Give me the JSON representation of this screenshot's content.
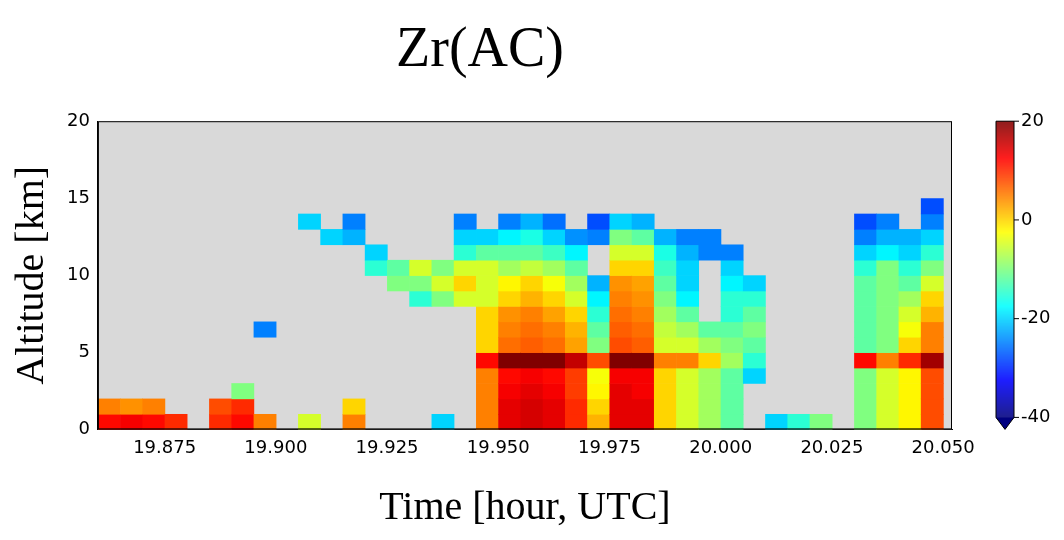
{
  "chart_data": {
    "type": "heatmap",
    "title": "Zr(AC)",
    "x_label": "Time [hour, UTC]",
    "y_label": "Altitude [km]",
    "xlim": [
      19.86,
      20.052
    ],
    "xticks": [
      19.875,
      {
        "value": 19.9,
        "label": "19.900"
      },
      19.925,
      {
        "value": 19.95,
        "label": "19.950"
      },
      19.975,
      {
        "value": 20.0,
        "label": "20.000"
      },
      20.025,
      {
        "value": 20.05,
        "label": "20.050"
      }
    ],
    "ylim": [
      0,
      20
    ],
    "yticks": [
      0,
      5,
      10,
      15,
      20
    ],
    "grid": false,
    "x": [
      19.8625,
      19.8675,
      19.8725,
      19.8775,
      19.8825,
      19.8875,
      19.8925,
      19.8975,
      19.9025,
      19.9075,
      19.9125,
      19.9175,
      19.9225,
      19.9275,
      19.9325,
      19.9375,
      19.9425,
      19.9475,
      19.9525,
      19.9575,
      19.9625,
      19.9675,
      19.9725,
      19.9775,
      19.9825,
      19.9875,
      19.9925,
      19.9975,
      20.0025,
      20.0075,
      20.0125,
      20.0175,
      20.0225,
      20.0275,
      20.0325,
      20.0375,
      20.0425,
      20.0475
    ],
    "y": [
      0.5,
      1.5,
      2.5,
      3.5,
      4.5,
      5.5,
      6.5,
      7.5,
      8.5,
      9.5,
      10.5,
      11.5,
      12.5,
      13.5,
      14.5
    ],
    "z": [
      [
        12,
        5,
        null,
        null,
        null,
        null,
        null,
        null,
        null,
        null,
        null,
        null,
        null,
        null,
        null
      ],
      [
        13,
        4,
        null,
        null,
        null,
        null,
        null,
        null,
        null,
        null,
        null,
        null,
        null,
        null,
        null
      ],
      [
        12,
        5,
        null,
        null,
        null,
        null,
        null,
        null,
        null,
        null,
        null,
        null,
        null,
        null,
        null
      ],
      [
        10,
        null,
        null,
        null,
        null,
        null,
        null,
        null,
        null,
        null,
        null,
        null,
        null,
        null,
        null
      ],
      [
        null,
        null,
        null,
        null,
        null,
        null,
        null,
        null,
        null,
        null,
        null,
        null,
        null,
        null,
        null
      ],
      [
        10,
        8,
        null,
        null,
        null,
        null,
        null,
        null,
        null,
        null,
        null,
        null,
        null,
        null,
        null
      ],
      [
        12,
        10,
        -10,
        null,
        null,
        null,
        null,
        null,
        null,
        null,
        null,
        null,
        null,
        null,
        null
      ],
      [
        5,
        null,
        null,
        null,
        null,
        null,
        -25,
        null,
        null,
        null,
        null,
        null,
        null,
        null,
        null
      ],
      [
        null,
        null,
        null,
        null,
        null,
        null,
        null,
        null,
        null,
        null,
        null,
        null,
        null,
        null,
        null
      ],
      [
        -5,
        null,
        null,
        null,
        null,
        null,
        null,
        null,
        null,
        null,
        null,
        null,
        null,
        -20,
        null
      ],
      [
        null,
        null,
        null,
        null,
        null,
        null,
        null,
        null,
        null,
        null,
        null,
        null,
        -20,
        null,
        null
      ],
      [
        5,
        0,
        null,
        null,
        null,
        null,
        null,
        null,
        null,
        null,
        null,
        null,
        -22,
        -25,
        null
      ],
      [
        null,
        null,
        null,
        null,
        null,
        null,
        null,
        null,
        null,
        null,
        -15,
        -20,
        null,
        null,
        null
      ],
      [
        null,
        null,
        null,
        null,
        null,
        null,
        null,
        null,
        null,
        -10,
        -12,
        null,
        null,
        null,
        null
      ],
      [
        null,
        null,
        null,
        null,
        null,
        null,
        null,
        null,
        -15,
        -10,
        -5,
        null,
        null,
        null,
        null
      ],
      [
        -20,
        null,
        null,
        null,
        null,
        null,
        null,
        null,
        -10,
        -5,
        -10,
        null,
        null,
        null,
        null
      ],
      [
        null,
        null,
        null,
        null,
        null,
        null,
        null,
        null,
        -5,
        0,
        -5,
        -15,
        -20,
        -25,
        null
      ],
      [
        5,
        5,
        5,
        5,
        12,
        0,
        0,
        0,
        -5,
        -5,
        -5,
        -12,
        -20,
        null,
        null
      ],
      [
        14,
        14,
        13,
        12,
        20,
        6,
        5,
        4,
        0,
        -2,
        -8,
        -12,
        -18,
        -25,
        null
      ],
      [
        15,
        15,
        14,
        13,
        21,
        7,
        6,
        5,
        2,
        0,
        -6,
        -12,
        -16,
        -22,
        null
      ],
      [
        14,
        14,
        13,
        12,
        20,
        6,
        5,
        3,
        0,
        -3,
        -8,
        -14,
        -20,
        -26,
        null
      ],
      [
        10,
        10,
        9,
        9,
        16,
        3,
        2,
        0,
        -5,
        -8,
        -12,
        -18,
        -24,
        null,
        null
      ],
      [
        2,
        0,
        -2,
        -3,
        8,
        -10,
        -12,
        -15,
        -18,
        -22,
        null,
        null,
        -25,
        -28,
        null
      ],
      [
        14,
        14,
        14,
        13,
        20,
        8,
        7,
        6,
        5,
        4,
        0,
        -5,
        -10,
        -20,
        null
      ],
      [
        14,
        14,
        13,
        13,
        20,
        7,
        6,
        5,
        4,
        3,
        0,
        -5,
        -12,
        -22,
        null
      ],
      [
        0,
        0,
        0,
        0,
        5,
        -5,
        -6,
        -8,
        -10,
        -12,
        -14,
        -16,
        -22,
        null,
        null
      ],
      [
        -5,
        -5,
        -5,
        -5,
        5,
        -5,
        -8,
        -12,
        -18,
        -20,
        -20,
        -22,
        -25,
        null,
        null
      ],
      [
        -8,
        -8,
        -8,
        -8,
        0,
        -8,
        -12,
        null,
        null,
        null,
        null,
        -25,
        -25,
        null,
        null
      ],
      [
        -12,
        -12,
        -12,
        -12,
        -8,
        -10,
        -12,
        -15,
        -15,
        -18,
        -20,
        -25,
        null,
        null,
        null
      ],
      [
        null,
        null,
        null,
        -20,
        -15,
        -12,
        -10,
        -12,
        -15,
        -20,
        null,
        null,
        null,
        null,
        null
      ],
      [
        -20,
        null,
        null,
        null,
        null,
        null,
        null,
        null,
        null,
        null,
        null,
        null,
        null,
        null,
        null
      ],
      [
        -15,
        null,
        null,
        null,
        null,
        null,
        null,
        null,
        null,
        null,
        null,
        null,
        null,
        null,
        null
      ],
      [
        -10,
        null,
        null,
        null,
        null,
        null,
        null,
        null,
        null,
        null,
        null,
        null,
        null,
        null,
        null
      ],
      [
        null,
        null,
        null,
        null,
        null,
        null,
        null,
        null,
        null,
        null,
        null,
        null,
        null,
        null,
        null
      ],
      [
        -10,
        -10,
        -10,
        -10,
        12,
        -12,
        -12,
        -12,
        -12,
        -12,
        -15,
        -20,
        -25,
        -28,
        null
      ],
      [
        -5,
        -5,
        -5,
        -5,
        5,
        -10,
        -10,
        -10,
        -10,
        -10,
        -10,
        -18,
        -22,
        -25,
        null
      ],
      [
        -2,
        -2,
        -2,
        -2,
        10,
        0,
        -3,
        -5,
        -8,
        -12,
        -15,
        -20,
        -22,
        null,
        null
      ],
      [
        8,
        8,
        8,
        8,
        18,
        5,
        5,
        2,
        0,
        -5,
        -10,
        -15,
        -20,
        -25,
        -28
      ]
    ],
    "colorbar": {
      "range": [
        -40,
        20
      ],
      "ticks": [
        -40,
        -20,
        0,
        20
      ]
    }
  }
}
